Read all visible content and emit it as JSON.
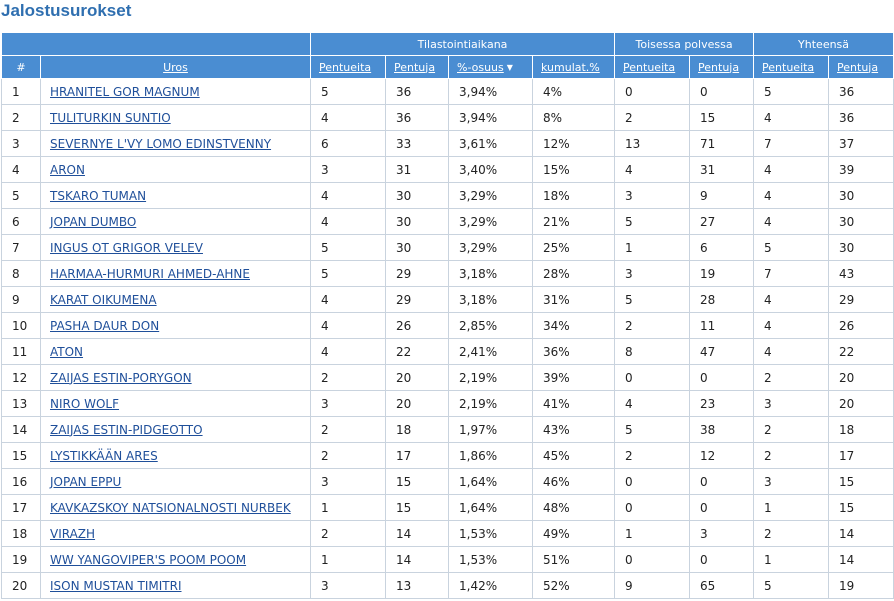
{
  "page": {
    "title": "Jalostusurokset"
  },
  "table": {
    "groups": {
      "stat_period": "Tilastointiaikana",
      "second_gen": "Toisessa polvessa",
      "total": "Yhteensä"
    },
    "columns": {
      "index": "#",
      "uros": "Uros",
      "pentueita1": "Pentueita",
      "pentuja1": "Pentuja",
      "osuus": "%-osuus",
      "kumulat": "kumulat.%",
      "pentueita2": "Pentueita",
      "pentuja2": "Pentuja",
      "pentueita3": "Pentueita",
      "pentuja3": "Pentuja"
    },
    "rows": [
      {
        "n": "1",
        "uros": "HRANITEL GOR MAGNUM",
        "l1": "5",
        "p1": "36",
        "osuus": "3,94%",
        "kum": "4%",
        "l2": "0",
        "p2": "0",
        "l3": "5",
        "p3": "36"
      },
      {
        "n": "2",
        "uros": "TULITURKIN SUNTIO",
        "l1": "4",
        "p1": "36",
        "osuus": "3,94%",
        "kum": "8%",
        "l2": "2",
        "p2": "15",
        "l3": "4",
        "p3": "36"
      },
      {
        "n": "3",
        "uros": "SEVERNYE L'VY LOMO EDINSTVENNY",
        "l1": "6",
        "p1": "33",
        "osuus": "3,61%",
        "kum": "12%",
        "l2": "13",
        "p2": "71",
        "l3": "7",
        "p3": "37"
      },
      {
        "n": "4",
        "uros": "ARON",
        "l1": "3",
        "p1": "31",
        "osuus": "3,40%",
        "kum": "15%",
        "l2": "4",
        "p2": "31",
        "l3": "4",
        "p3": "39"
      },
      {
        "n": "5",
        "uros": "TSKARO TUMAN",
        "l1": "4",
        "p1": "30",
        "osuus": "3,29%",
        "kum": "18%",
        "l2": "3",
        "p2": "9",
        "l3": "4",
        "p3": "30"
      },
      {
        "n": "6",
        "uros": "JOPAN DUMBO",
        "l1": "4",
        "p1": "30",
        "osuus": "3,29%",
        "kum": "21%",
        "l2": "5",
        "p2": "27",
        "l3": "4",
        "p3": "30"
      },
      {
        "n": "7",
        "uros": "INGUS OT GRIGOR VELEV",
        "l1": "5",
        "p1": "30",
        "osuus": "3,29%",
        "kum": "25%",
        "l2": "1",
        "p2": "6",
        "l3": "5",
        "p3": "30"
      },
      {
        "n": "8",
        "uros": "HARMAA-HURMURI AHMED-AHNE",
        "l1": "5",
        "p1": "29",
        "osuus": "3,18%",
        "kum": "28%",
        "l2": "3",
        "p2": "19",
        "l3": "7",
        "p3": "43"
      },
      {
        "n": "9",
        "uros": "KARAT OIKUMENA",
        "l1": "4",
        "p1": "29",
        "osuus": "3,18%",
        "kum": "31%",
        "l2": "5",
        "p2": "28",
        "l3": "4",
        "p3": "29"
      },
      {
        "n": "10",
        "uros": "PASHA DAUR DON",
        "l1": "4",
        "p1": "26",
        "osuus": "2,85%",
        "kum": "34%",
        "l2": "2",
        "p2": "11",
        "l3": "4",
        "p3": "26"
      },
      {
        "n": "11",
        "uros": "ATON",
        "l1": "4",
        "p1": "22",
        "osuus": "2,41%",
        "kum": "36%",
        "l2": "8",
        "p2": "47",
        "l3": "4",
        "p3": "22"
      },
      {
        "n": "12",
        "uros": "ZAIJAS ESTIN-PORYGON",
        "l1": "2",
        "p1": "20",
        "osuus": "2,19%",
        "kum": "39%",
        "l2": "0",
        "p2": "0",
        "l3": "2",
        "p3": "20"
      },
      {
        "n": "13",
        "uros": "NIRO WOLF",
        "l1": "3",
        "p1": "20",
        "osuus": "2,19%",
        "kum": "41%",
        "l2": "4",
        "p2": "23",
        "l3": "3",
        "p3": "20"
      },
      {
        "n": "14",
        "uros": "ZAIJAS ESTIN-PIDGEOTTO",
        "l1": "2",
        "p1": "18",
        "osuus": "1,97%",
        "kum": "43%",
        "l2": "5",
        "p2": "38",
        "l3": "2",
        "p3": "18"
      },
      {
        "n": "15",
        "uros": "LYSTIKKÄÄN ARES",
        "l1": "2",
        "p1": "17",
        "osuus": "1,86%",
        "kum": "45%",
        "l2": "2",
        "p2": "12",
        "l3": "2",
        "p3": "17"
      },
      {
        "n": "16",
        "uros": "JOPAN EPPU",
        "l1": "3",
        "p1": "15",
        "osuus": "1,64%",
        "kum": "46%",
        "l2": "0",
        "p2": "0",
        "l3": "3",
        "p3": "15"
      },
      {
        "n": "17",
        "uros": "KAVKAZSKOY NATSIONALNOSTI NURBEK",
        "l1": "1",
        "p1": "15",
        "osuus": "1,64%",
        "kum": "48%",
        "l2": "0",
        "p2": "0",
        "l3": "1",
        "p3": "15"
      },
      {
        "n": "18",
        "uros": "VIRAZH",
        "l1": "2",
        "p1": "14",
        "osuus": "1,53%",
        "kum": "49%",
        "l2": "1",
        "p2": "3",
        "l3": "2",
        "p3": "14"
      },
      {
        "n": "19",
        "uros": "WW YANGOVIPER'S POOM POOM",
        "l1": "1",
        "p1": "14",
        "osuus": "1,53%",
        "kum": "51%",
        "l2": "0",
        "p2": "0",
        "l3": "1",
        "p3": "14"
      },
      {
        "n": "20",
        "uros": "ISON MUSTAN TIMITRI",
        "l1": "3",
        "p1": "13",
        "osuus": "1,42%",
        "kum": "52%",
        "l2": "9",
        "p2": "65",
        "l3": "5",
        "p3": "19"
      }
    ]
  }
}
